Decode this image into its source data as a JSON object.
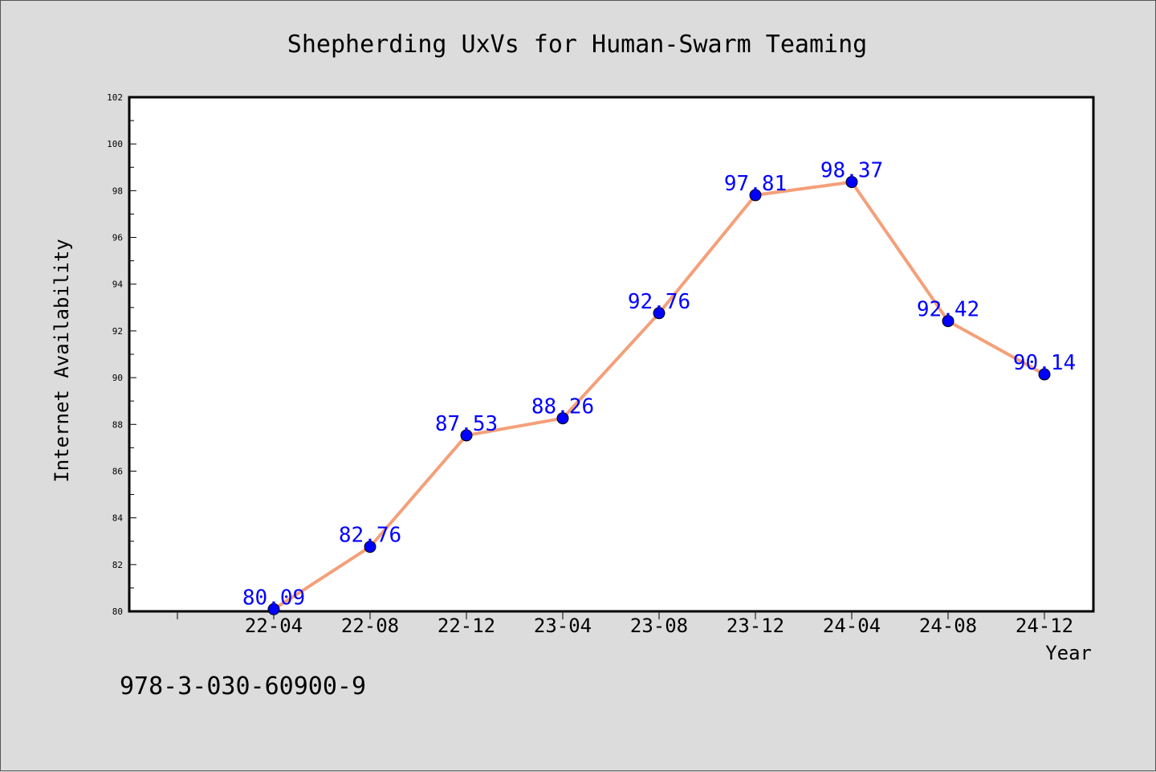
{
  "chart_data": {
    "type": "line",
    "title": "Shepherding UxVs for Human-Swarm Teaming",
    "xlabel": "Year",
    "ylabel": "Internet Availability",
    "categories": [
      "22-04",
      "22-08",
      "22-12",
      "23-04",
      "23-08",
      "23-12",
      "24-04",
      "24-08",
      "24-12"
    ],
    "values": [
      80.09,
      82.76,
      87.53,
      88.26,
      92.76,
      97.81,
      98.37,
      92.42,
      90.14
    ],
    "data_labels": [
      "80.09",
      "82.76",
      "87.53",
      "88.26",
      "92.76",
      "97.81",
      "98.37",
      "92.42",
      "90.14"
    ],
    "ylim": [
      80,
      102
    ],
    "yticks": [
      "80",
      "82",
      "84",
      "86",
      "88",
      "90",
      "92",
      "94",
      "96",
      "98",
      "100",
      "102"
    ],
    "grid": false,
    "line_color": "#f4a07a",
    "marker_color": "#0000ff",
    "label_color": "#0000ff"
  },
  "footer": {
    "isbn": "978-3-030-60900-9"
  }
}
